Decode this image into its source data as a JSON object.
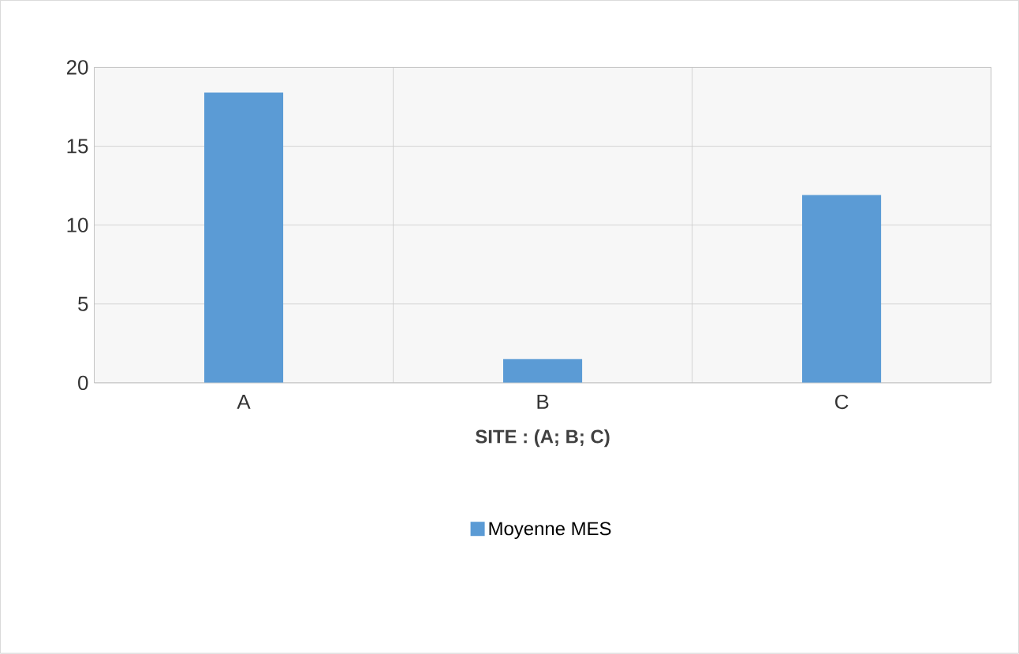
{
  "chart_data": {
    "type": "bar",
    "categories": [
      "A",
      "B",
      "C"
    ],
    "series": [
      {
        "name": "Moyenne MES",
        "color": "#5b9bd5",
        "values": [
          18.4,
          1.5,
          11.9
        ]
      }
    ],
    "xlabel": "SITE : (A; B; C)",
    "ylim": [
      0,
      20
    ],
    "yticks": [
      0,
      5,
      10,
      15,
      20
    ],
    "grid": true,
    "legend": "bottom"
  }
}
